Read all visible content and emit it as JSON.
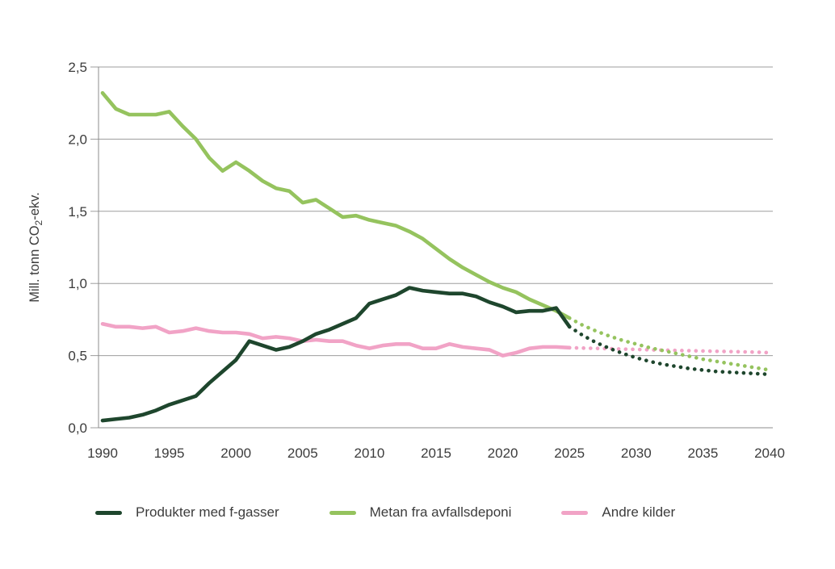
{
  "chart_data": {
    "type": "line",
    "title": "",
    "ylabel": {
      "pre": "Mill. tonn CO",
      "sub": "2",
      "post": "-ekv."
    },
    "xlabel": "",
    "x_range": [
      1990,
      2040
    ],
    "x_ticks": [
      1990,
      1995,
      2000,
      2005,
      2010,
      2015,
      2020,
      2025,
      2030,
      2035,
      2040
    ],
    "y_ticks": {
      "values": [
        0,
        0.5,
        1.0,
        1.5,
        2.0,
        2.5
      ],
      "labels": [
        "0,0",
        "0,5",
        "1,0",
        "1,5",
        "2,0",
        "2,5"
      ]
    },
    "ylim": [
      0,
      2.5
    ],
    "grid": "horizontal",
    "legend_position": "bottom",
    "solid_end_year": 2025,
    "colors": {
      "grid": "#9d9d9d",
      "axis": "#8c8c8c",
      "text": "#3c3c3c"
    },
    "series": [
      {
        "name": "Produkter med f-gasser",
        "color": "#1e462d",
        "start_year": 1990,
        "values": [
          0.05,
          0.06,
          0.07,
          0.09,
          0.12,
          0.16,
          0.19,
          0.22,
          0.31,
          0.39,
          0.47,
          0.6,
          0.57,
          0.54,
          0.56,
          0.6,
          0.65,
          0.68,
          0.72,
          0.76,
          0.86,
          0.89,
          0.92,
          0.97,
          0.95,
          0.94,
          0.93,
          0.93,
          0.91,
          0.87,
          0.84,
          0.8,
          0.81,
          0.81,
          0.83,
          0.7
        ],
        "projection_start_year": 2025,
        "projection_values": [
          0.7,
          0.64,
          0.59,
          0.55,
          0.515,
          0.485,
          0.46,
          0.44,
          0.425,
          0.41,
          0.4,
          0.39,
          0.385,
          0.38,
          0.375,
          0.37
        ],
        "projection_style": "dotted"
      },
      {
        "name": "Metan fra avfallsdeponi",
        "color": "#95c35e",
        "start_year": 1990,
        "values": [
          2.32,
          2.21,
          2.17,
          2.17,
          2.17,
          2.19,
          2.09,
          2.0,
          1.87,
          1.78,
          1.84,
          1.78,
          1.71,
          1.66,
          1.64,
          1.56,
          1.58,
          1.52,
          1.46,
          1.47,
          1.44,
          1.42,
          1.4,
          1.36,
          1.31,
          1.24,
          1.17,
          1.11,
          1.06,
          1.01,
          0.97,
          0.94,
          0.89,
          0.85,
          0.81,
          0.76
        ],
        "projection_start_year": 2025,
        "projection_values": [
          0.76,
          0.71,
          0.67,
          0.635,
          0.605,
          0.58,
          0.555,
          0.535,
          0.515,
          0.495,
          0.475,
          0.46,
          0.445,
          0.43,
          0.415,
          0.4
        ],
        "projection_style": "dotted"
      },
      {
        "name": "Andre kilder",
        "color": "#f1a3c6",
        "start_year": 1990,
        "values": [
          0.72,
          0.7,
          0.7,
          0.69,
          0.7,
          0.66,
          0.67,
          0.69,
          0.67,
          0.66,
          0.66,
          0.65,
          0.62,
          0.63,
          0.62,
          0.6,
          0.61,
          0.6,
          0.6,
          0.57,
          0.55,
          0.57,
          0.58,
          0.58,
          0.55,
          0.55,
          0.58,
          0.56,
          0.55,
          0.54,
          0.5,
          0.52,
          0.55,
          0.56,
          0.56,
          0.555
        ],
        "projection_start_year": 2025,
        "projection_values": [
          0.555,
          0.552,
          0.55,
          0.548,
          0.545,
          0.543,
          0.54,
          0.538,
          0.536,
          0.534,
          0.532,
          0.53,
          0.528,
          0.526,
          0.524,
          0.52
        ],
        "projection_style": "dotted"
      }
    ]
  }
}
